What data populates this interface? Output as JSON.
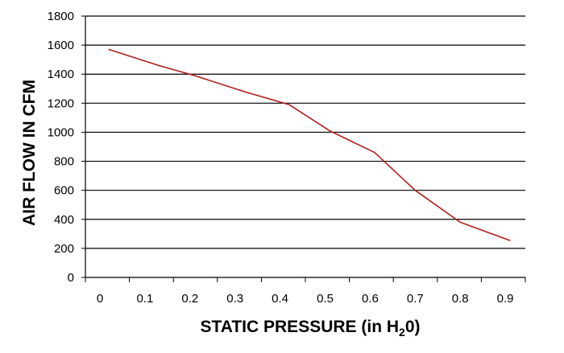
{
  "chart_data": {
    "type": "line",
    "title": "",
    "xlabel": "STATIC PRESSURE (in H20)",
    "xlabel_parts": {
      "prefix": "STATIC PRESSURE (in H",
      "subscript": "2",
      "suffix": "0)"
    },
    "ylabel": "AIR FLOW IN CFM",
    "xlim": [
      0,
      0.9
    ],
    "ylim": [
      0,
      1800
    ],
    "x_ticks": [
      "0",
      "0.1",
      "0.2",
      "0.3",
      "0.4",
      "0.5",
      "0.6",
      "0.7",
      "0.8",
      "0.9"
    ],
    "y_ticks": [
      "0",
      "200",
      "400",
      "600",
      "800",
      "1000",
      "1200",
      "1400",
      "1600",
      "1800"
    ],
    "grid": true,
    "legend": "none",
    "series": [
      {
        "color": "#b01c1c",
        "x": [
          0.02,
          0.13,
          0.21,
          0.32,
          0.42,
          0.51,
          0.61,
          0.7,
          0.8,
          0.91
        ],
        "y": [
          1570,
          1460,
          1390,
          1280,
          1190,
          1010,
          860,
          600,
          380,
          255
        ]
      }
    ]
  }
}
